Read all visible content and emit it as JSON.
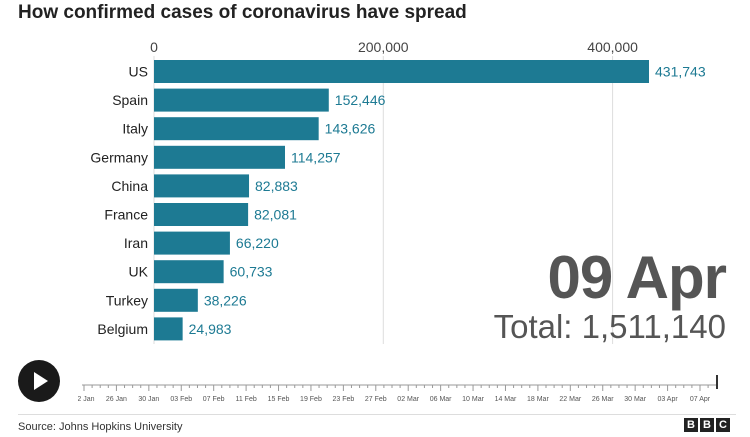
{
  "title": "How confirmed cases of coronavirus have spread",
  "date_label": "09 Apr",
  "total_label": "Total: 1,511,140",
  "source": "Source: Johns Hopkins University",
  "logo": [
    "B",
    "B",
    "C"
  ],
  "play_icon": "play-icon",
  "colors": {
    "bar": "#1d7a93",
    "value_text": "#1d7a93",
    "grid": "#dddddd",
    "big_text": "#555555"
  },
  "timeline": {
    "ticks": [
      "22 Jan",
      "26 Jan",
      "30 Jan",
      "03 Feb",
      "07 Feb",
      "11 Feb",
      "15 Feb",
      "19 Feb",
      "23 Feb",
      "27 Feb",
      "02 Mar",
      "06 Mar",
      "10 Mar",
      "14 Mar",
      "18 Mar",
      "22 Mar",
      "26 Mar",
      "30 Mar",
      "03 Apr",
      "07 Apr"
    ],
    "progress": 1.0
  },
  "chart_data": {
    "type": "bar",
    "orientation": "horizontal",
    "title": "How confirmed cases of coronavirus have spread",
    "categories": [
      "US",
      "Spain",
      "Italy",
      "Germany",
      "China",
      "France",
      "Iran",
      "UK",
      "Turkey",
      "Belgium"
    ],
    "values": [
      431743,
      152446,
      143626,
      114257,
      82883,
      82081,
      66220,
      60733,
      38226,
      24983
    ],
    "value_labels": [
      "431,743",
      "152,446",
      "143,626",
      "114,257",
      "82,883",
      "82,081",
      "66,220",
      "60,733",
      "38,226",
      "24,983"
    ],
    "xticks": [
      0,
      200000,
      400000
    ],
    "xtick_labels": [
      "0",
      "200,000",
      "400,000"
    ],
    "xlim": [
      0,
      431743
    ],
    "xaxis_position": "top",
    "grid": true
  }
}
